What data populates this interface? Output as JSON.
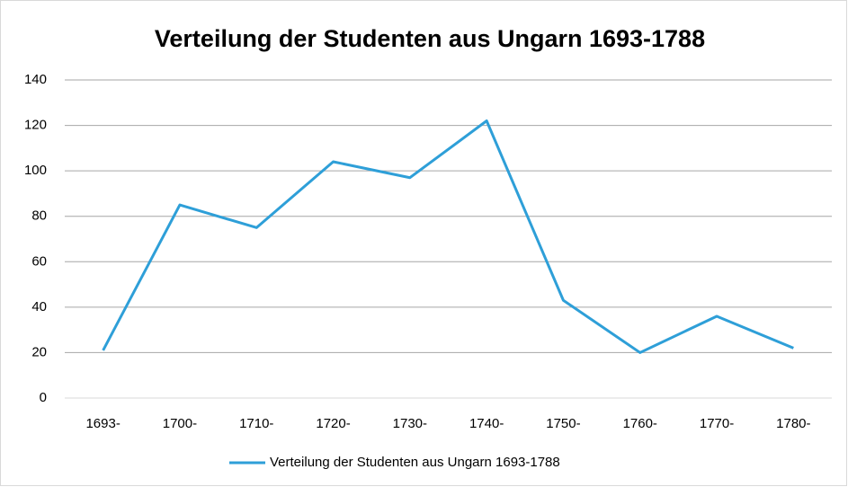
{
  "chart_data": {
    "type": "line",
    "title": "Verteilung der Studenten aus Ungarn 1693-1788",
    "categories": [
      "1693-",
      "1700-",
      "1710-",
      "1720-",
      "1730-",
      "1740-",
      "1750-",
      "1760-",
      "1770-",
      "1780-"
    ],
    "series": [
      {
        "name": "Verteilung der Studenten aus Ungarn 1693-1788",
        "color": "#2e9fd8",
        "values": [
          21,
          85,
          75,
          104,
          97,
          122,
          43,
          20,
          36,
          22
        ]
      }
    ],
    "ylim": [
      0,
      140
    ],
    "yticks": [
      0,
      20,
      40,
      60,
      80,
      100,
      120,
      140
    ],
    "grid": true,
    "legend": "bottom"
  }
}
